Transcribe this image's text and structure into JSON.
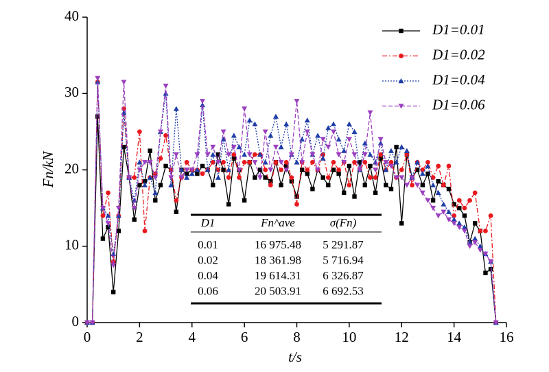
{
  "chart_data": {
    "type": "line",
    "xlabel": "t/s",
    "ylabel": "Fn/kN",
    "xlim": [
      0,
      16
    ],
    "xticks": [
      0,
      2,
      4,
      6,
      8,
      10,
      12,
      14,
      16
    ],
    "ylim": [
      0,
      40
    ],
    "yticks": [
      0,
      10,
      20,
      30,
      40
    ],
    "legend": "upper right",
    "x": [
      0,
      0.2,
      0.4,
      0.6,
      0.8,
      1.0,
      1.2,
      1.4,
      1.6,
      1.8,
      2.0,
      2.2,
      2.4,
      2.6,
      2.8,
      3.0,
      3.2,
      3.4,
      3.6,
      3.8,
      4.0,
      4.2,
      4.4,
      4.6,
      4.8,
      5.0,
      5.2,
      5.4,
      5.6,
      5.8,
      6.0,
      6.2,
      6.4,
      6.6,
      6.8,
      7.0,
      7.2,
      7.4,
      7.6,
      7.8,
      8.0,
      8.2,
      8.4,
      8.6,
      8.8,
      9.0,
      9.2,
      9.4,
      9.6,
      9.8,
      10.0,
      10.2,
      10.4,
      10.6,
      10.8,
      11.0,
      11.2,
      11.4,
      11.6,
      11.8,
      12.0,
      12.2,
      12.4,
      12.6,
      12.8,
      13.0,
      13.2,
      13.4,
      13.6,
      13.8,
      14.0,
      14.2,
      14.4,
      14.6,
      14.8,
      15.0,
      15.2,
      15.4,
      15.6
    ],
    "series": [
      {
        "name": "D1=0.01",
        "color": "#000000",
        "dash": "solid",
        "marker": "square",
        "values": [
          0,
          0,
          27,
          11,
          12.5,
          4,
          12,
          23,
          19,
          13.5,
          18,
          18.5,
          22.5,
          16,
          18,
          20.5,
          20,
          14.5,
          20,
          19.5,
          20,
          19.5,
          20.5,
          20,
          18,
          22,
          20,
          15.5,
          21.5,
          20,
          16,
          21,
          19,
          20,
          19,
          18.5,
          21,
          18,
          20.5,
          18.5,
          16.5,
          20,
          19.5,
          17.5,
          20,
          19,
          18,
          20,
          19.5,
          17,
          20.5,
          16.5,
          21,
          18,
          20.5,
          17,
          21.5,
          18,
          17.5,
          23,
          13,
          22,
          19,
          20,
          18,
          19.5,
          16,
          18.5,
          18,
          17.5,
          15.5,
          15,
          14,
          10.5,
          13,
          12,
          6.5,
          7,
          0
        ]
      },
      {
        "name": "D1=0.02",
        "color": "#e8191e",
        "dash": "dashdot",
        "marker": "circle",
        "values": [
          0,
          0,
          31.5,
          14,
          17,
          8,
          14,
          28,
          19,
          19,
          25,
          12,
          19,
          19.5,
          21.5,
          24.5,
          20,
          16,
          19,
          21,
          20,
          20,
          19.5,
          20,
          21,
          20,
          21,
          19,
          22,
          19,
          21,
          21,
          22,
          22,
          20,
          18,
          21,
          20,
          21,
          19,
          15.5,
          21,
          20,
          21,
          20,
          22,
          19,
          21,
          20,
          21,
          18,
          21,
          20,
          21,
          19,
          19,
          22,
          20,
          21,
          19,
          20,
          22,
          18,
          21,
          20,
          21,
          19,
          20.5,
          18,
          20.5,
          14,
          16,
          15,
          16,
          17,
          12,
          12,
          14,
          0
        ]
      },
      {
        "name": "D1=0.04",
        "color": "#1f3ea8",
        "dash": "dotted",
        "marker": "triangle-up",
        "values": [
          0,
          0,
          31.5,
          15,
          14,
          9,
          14,
          27.5,
          19,
          16,
          21,
          18,
          19,
          17,
          25,
          30,
          18,
          28,
          20,
          19,
          19.5,
          20,
          28.5,
          20,
          22,
          19,
          24,
          20,
          24.5,
          23,
          22,
          26.5,
          26,
          22,
          21,
          24.5,
          27,
          23,
          26,
          22,
          21,
          24,
          26.5,
          22,
          24.5,
          21.5,
          25.5,
          26,
          24,
          22.5,
          26,
          25,
          20,
          23.5,
          22,
          21,
          23.5,
          20,
          22.5,
          21,
          23,
          22.5,
          19,
          21,
          19.5,
          20.5,
          18,
          17,
          15.5,
          14.5,
          13.5,
          13,
          12.5,
          10.5,
          11,
          10,
          9,
          8,
          0
        ]
      },
      {
        "name": "D1=0.06",
        "color": "#9b3fbf",
        "dash": "dashed",
        "marker": "triangle-down",
        "values": [
          0,
          0,
          32,
          15,
          13,
          7.5,
          15,
          31.5,
          19,
          15,
          20,
          21,
          21,
          19,
          25,
          31,
          19,
          22,
          19,
          20,
          20,
          22,
          29,
          22,
          23,
          21,
          25,
          22,
          23,
          20,
          28,
          22,
          21,
          19,
          25,
          20,
          23,
          21,
          20,
          22,
          29,
          21,
          25,
          22,
          20,
          24,
          23,
          25,
          22,
          21,
          24,
          22,
          20,
          22,
          27.5,
          20,
          24,
          21,
          20.5,
          19,
          19,
          18,
          19,
          18,
          17,
          16,
          15,
          14,
          14.5,
          13.5,
          13,
          12.5,
          12,
          10,
          10.5,
          9.5,
          9,
          8,
          0
        ]
      }
    ],
    "table": {
      "columns": [
        "D1",
        "Fn^ave",
        "σ(Fn)"
      ],
      "rows": [
        [
          "0.01",
          "16 975.48",
          "5 291.87"
        ],
        [
          "0.02",
          "18 361.98",
          "5 716.94"
        ],
        [
          "0.04",
          "19 614.31",
          "6 326.87"
        ],
        [
          "0.06",
          "20 503.91",
          "6 692.53"
        ]
      ]
    }
  }
}
